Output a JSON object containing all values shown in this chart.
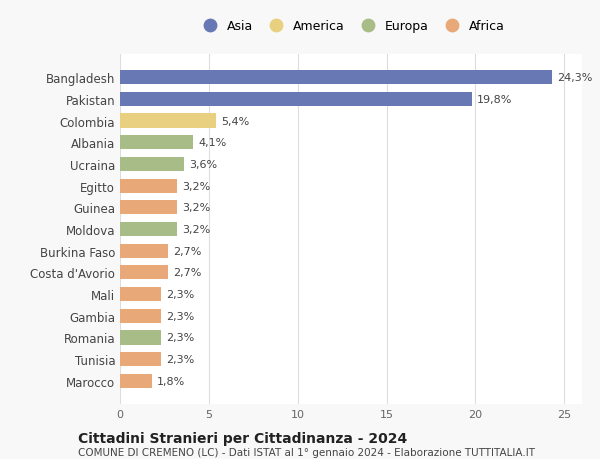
{
  "categories": [
    "Bangladesh",
    "Pakistan",
    "Colombia",
    "Albania",
    "Ucraina",
    "Egitto",
    "Guinea",
    "Moldova",
    "Burkina Faso",
    "Costa d'Avorio",
    "Mali",
    "Gambia",
    "Romania",
    "Tunisia",
    "Marocco"
  ],
  "values": [
    24.3,
    19.8,
    5.4,
    4.1,
    3.6,
    3.2,
    3.2,
    3.2,
    2.7,
    2.7,
    2.3,
    2.3,
    2.3,
    2.3,
    1.8
  ],
  "continents": [
    "Asia",
    "Asia",
    "America",
    "Europa",
    "Europa",
    "Africa",
    "Africa",
    "Europa",
    "Africa",
    "Africa",
    "Africa",
    "Africa",
    "Europa",
    "Africa",
    "Africa"
  ],
  "colors": {
    "Asia": "#6878b4",
    "America": "#e8d080",
    "Europa": "#a8bc88",
    "Africa": "#e8a878"
  },
  "legend_order": [
    "Asia",
    "America",
    "Europa",
    "Africa"
  ],
  "xlim": [
    0,
    26
  ],
  "xticks": [
    0,
    5,
    10,
    15,
    20,
    25
  ],
  "title": "Cittadini Stranieri per Cittadinanza - 2024",
  "subtitle": "COMUNE DI CREMENO (LC) - Dati ISTAT al 1° gennaio 2024 - Elaborazione TUTTITALIA.IT",
  "background_color": "#f8f8f8",
  "plot_bg_color": "#ffffff",
  "grid_color": "#dddddd",
  "bar_height": 0.65
}
